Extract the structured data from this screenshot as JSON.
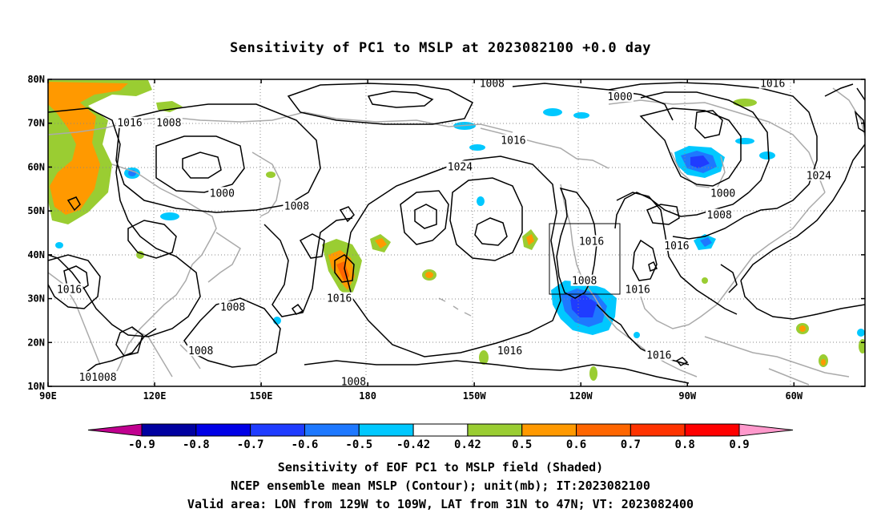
{
  "title": "Sensitivity of PC1 to MSLP at 2023082100 +0.0 day",
  "captions": {
    "line1": "Sensitivity of EOF PC1 to MSLP field (Shaded)",
    "line2": "NCEP ensemble mean MSLP (Contour); unit(mb); IT:2023082100",
    "line3": "Valid area: LON from 129W to 109W, LAT from 31N to 47N; VT: 2023082400"
  },
  "axes": {
    "lon_labels": [
      "90E",
      "120E",
      "150E",
      "180",
      "150W",
      "120W",
      "90W",
      "60W"
    ],
    "lat_labels": [
      "80N",
      "70N",
      "60N",
      "50N",
      "40N",
      "30N",
      "20N",
      "10N"
    ]
  },
  "colorbar": {
    "colors": [
      "#c0008f",
      "#0000a0",
      "#0000e6",
      "#1f3cff",
      "#1e78ff",
      "#00c8ff",
      "#ffffff",
      "#9acd32",
      "#ff9900",
      "#ff6600",
      "#ff3300",
      "#ff0000",
      "#ff99cc"
    ],
    "labels": [
      "-0.9",
      "-0.8",
      "-0.7",
      "-0.6",
      "-0.5",
      "-0.42",
      "0.42",
      "0.5",
      "0.6",
      "0.7",
      "0.8",
      "0.9"
    ]
  },
  "contour_labels": [
    {
      "text": "1008",
      "lon": 176,
      "lat": 11
    },
    {
      "text": "1016",
      "lon": 256,
      "lat": 32
    },
    {
      "text": "1008",
      "lon": 241,
      "lat": 34
    },
    {
      "text": "1016",
      "lon": 243,
      "lat": 43
    },
    {
      "text": "1016",
      "lon": 262,
      "lat": 17
    },
    {
      "text": "1016",
      "lon": 220,
      "lat": 18
    },
    {
      "text": "1016",
      "lon": 172,
      "lat": 30
    },
    {
      "text": "1008",
      "lon": 142,
      "lat": 28
    },
    {
      "text": "1008",
      "lon": 133,
      "lat": 18
    },
    {
      "text": "101008",
      "lon": 104,
      "lat": 12
    },
    {
      "text": "1016",
      "lon": 96,
      "lat": 32
    },
    {
      "text": "1016",
      "lon": 113,
      "lat": 70
    },
    {
      "text": "1008",
      "lon": 124,
      "lat": 70
    },
    {
      "text": "1000",
      "lon": 139,
      "lat": 54
    },
    {
      "text": "1008",
      "lon": 160,
      "lat": 51
    },
    {
      "text": "1024",
      "lon": 206,
      "lat": 60
    },
    {
      "text": "1016",
      "lon": 221,
      "lat": 66
    },
    {
      "text": "1008",
      "lon": 215,
      "lat": 79
    },
    {
      "text": "1000",
      "lon": 251,
      "lat": 76
    },
    {
      "text": "1016",
      "lon": 294,
      "lat": 79
    },
    {
      "text": "1024",
      "lon": 307,
      "lat": 58
    },
    {
      "text": "1000",
      "lon": 280,
      "lat": 54
    },
    {
      "text": "1008",
      "lon": 279,
      "lat": 49
    },
    {
      "text": "1016",
      "lon": 267,
      "lat": 42
    }
  ]
}
